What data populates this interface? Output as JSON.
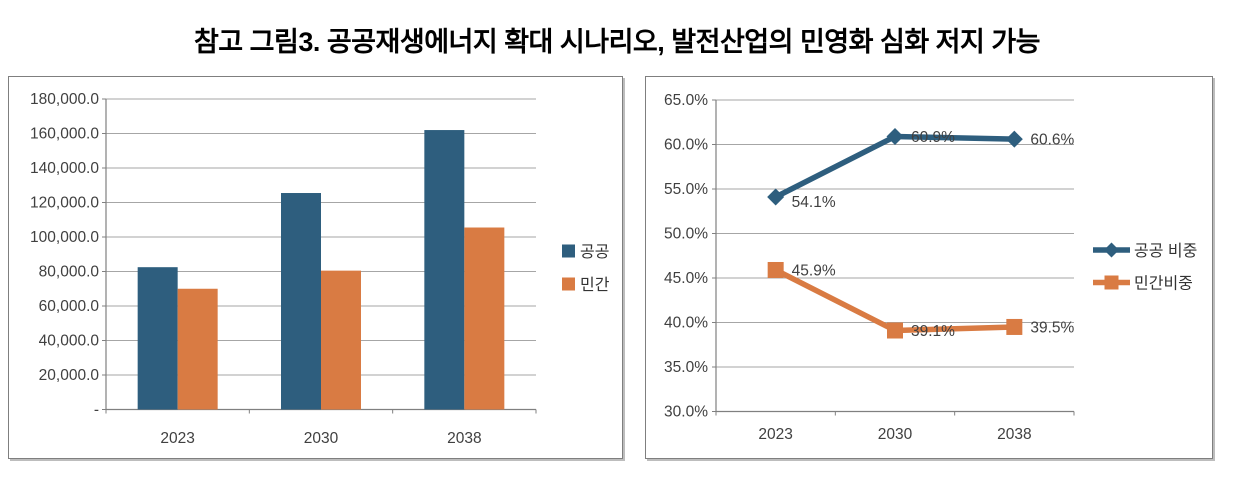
{
  "title": "참고 그림3. 공공재생에너지 확대 시나리오, 발전산업의 민영화 심화 저지 가능",
  "colors": {
    "public": "#2E5E7E",
    "private": "#D97B43",
    "grid": "#A6A6A6",
    "axis": "#808080",
    "label": "#404040",
    "legend_text": "#333333"
  },
  "chart_data": [
    {
      "type": "bar",
      "name": "left-bar-chart",
      "categories": [
        "2023",
        "2030",
        "2038"
      ],
      "series": [
        {
          "name": "공공",
          "color_key": "public",
          "values": [
            82500,
            125500,
            162000
          ]
        },
        {
          "name": "민간",
          "color_key": "private",
          "values": [
            70000,
            80500,
            105500
          ]
        }
      ],
      "ylim": [
        0,
        180000
      ],
      "ytick_step": 20000,
      "ytick_labels": [
        "180,000.0",
        "160,000.0",
        "140,000.0",
        "120,000.0",
        "100,000.0",
        "80,000.0",
        "60,000.0",
        "40,000.0",
        "20,000.0",
        "-"
      ],
      "xlabel": "",
      "ylabel": "",
      "grid": true,
      "legend_position": "right"
    },
    {
      "type": "line",
      "name": "right-line-chart",
      "categories": [
        "2023",
        "2030",
        "2038"
      ],
      "series": [
        {
          "name": "공공 비중",
          "color_key": "public",
          "marker": "diamond",
          "values": [
            54.1,
            60.9,
            60.6
          ],
          "labels": [
            "54.1%",
            "60.9%",
            "60.6%"
          ]
        },
        {
          "name": "민간비중",
          "color_key": "private",
          "marker": "square",
          "values": [
            45.9,
            39.1,
            39.5
          ],
          "labels": [
            "45.9%",
            "39.1%",
            "39.5%"
          ]
        }
      ],
      "ylim": [
        30,
        65
      ],
      "ytick_step": 5,
      "ytick_labels": [
        "65.0%",
        "60.0%",
        "55.0%",
        "50.0%",
        "45.0%",
        "40.0%",
        "35.0%",
        "30.0%"
      ],
      "xlabel": "",
      "ylabel": "",
      "grid": true,
      "legend_position": "right"
    }
  ]
}
